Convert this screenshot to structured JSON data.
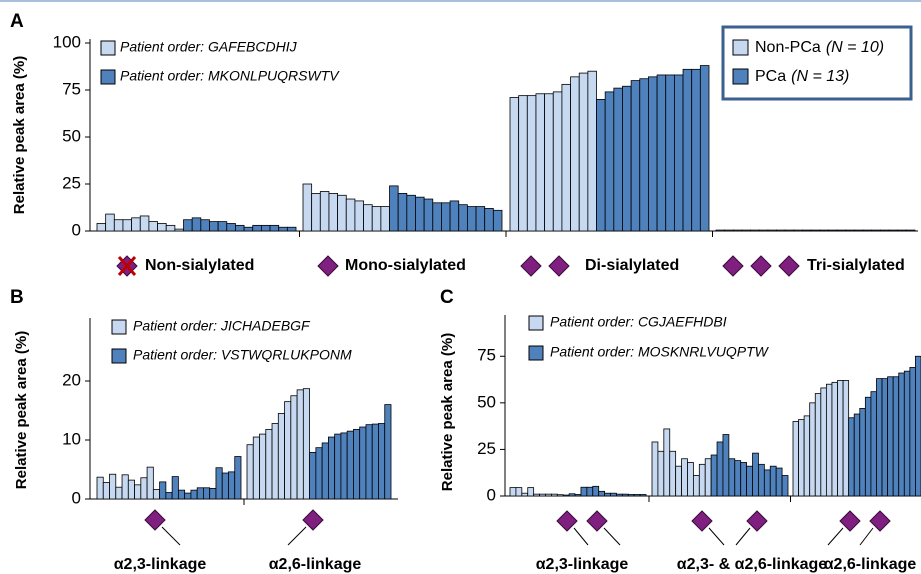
{
  "chart_data": [
    {
      "type": "bar",
      "panel": "A",
      "ylabel": "Relative peak area (%)",
      "categories": [
        "Non-sialylated",
        "Mono-sialylated",
        "Di-sialylated",
        "Tri-sialylated"
      ],
      "ylim": [
        0,
        100
      ],
      "yticks": [
        0,
        25,
        50,
        75,
        100
      ],
      "series": [
        {
          "name": "Non-PCa",
          "n_label": "(N = 10)",
          "order_label": "Patient order: GAFEBCDHIJ",
          "color": "#c6d9f1",
          "values": [
            [
              4,
              9,
              6,
              6,
              7,
              8,
              5,
              4,
              3,
              1
            ],
            [
              25,
              20,
              21,
              20,
              19,
              17,
              16,
              14,
              13,
              13
            ],
            [
              71,
              72,
              72,
              73,
              73,
              74,
              78,
              82,
              84,
              85
            ],
            [
              0.5,
              0.5,
              0.5,
              0.5,
              0.5,
              0.5,
              0.5,
              0.5,
              0.5,
              0.5
            ]
          ]
        },
        {
          "name": "PCa",
          "n_label": "(N = 13)",
          "order_label": "Patient order: MKONLPUQRSWTV",
          "color": "#4f81bd",
          "values": [
            [
              6,
              7,
              6,
              5,
              5,
              4,
              3,
              2,
              3,
              3,
              3,
              2,
              2
            ],
            [
              24,
              20,
              19,
              18,
              17,
              15,
              15,
              16,
              14,
              13,
              13,
              12,
              11
            ],
            [
              70,
              74,
              76,
              77,
              80,
              81,
              82,
              83,
              83,
              83,
              86,
              86,
              88
            ],
            [
              0.5,
              0.5,
              0.5,
              0.5,
              0.5,
              0.5,
              0.5,
              0.5,
              0.5,
              0.5,
              0.5,
              0.5,
              0.5
            ]
          ]
        }
      ]
    },
    {
      "type": "bar",
      "panel": "B",
      "ylabel": "Relative peak area (%)",
      "categories": [
        "α2,3-linkage",
        "α2,6-linkage"
      ],
      "ylim": [
        0,
        30
      ],
      "yticks": [
        0,
        10,
        20
      ],
      "series": [
        {
          "name": "Patient order: JICHADEBGF",
          "color": "#c6d9f1",
          "values": [
            [
              3.7,
              2.8,
              4.2,
              2.0,
              4.1,
              3.2,
              2.4,
              3.6,
              5.4,
              1.6
            ],
            [
              9.2,
              10.5,
              11,
              11.8,
              12.8,
              14.5,
              16.5,
              17.5,
              18.5,
              18.7
            ]
          ]
        },
        {
          "name": "Patient order: VSTWQRLUKPONM",
          "color": "#4f81bd",
          "values": [
            [
              2.9,
              1.1,
              3.8,
              1.5,
              1.0,
              1.5,
              1.9,
              1.9,
              1.8,
              5.3,
              4.4,
              4.6,
              7.2
            ],
            [
              7.9,
              8.7,
              9.5,
              10.5,
              11,
              11.2,
              11.5,
              11.8,
              12.2,
              12.6,
              12.7,
              12.8,
              16
            ]
          ]
        }
      ]
    },
    {
      "type": "bar",
      "panel": "C",
      "ylabel": "Relative peak area (%)",
      "categories": [
        "α2,3-linkage",
        "α2,3- & α2,6-linkage",
        "α2,6-linkage"
      ],
      "ylim": [
        0,
        95
      ],
      "yticks": [
        0,
        25,
        50,
        75
      ],
      "series": [
        {
          "name": "Patient order: CGJAEFHDBI",
          "color": "#c6d9f1",
          "values": [
            [
              4.5,
              4.5,
              1.5,
              4.5,
              1,
              1,
              1,
              1,
              0.7,
              0.5
            ],
            [
              29,
              24,
              36,
              24,
              16,
              20,
              18,
              11,
              17,
              20
            ],
            [
              40,
              41,
              43,
              50,
              55,
              58,
              60,
              61,
              62,
              62
            ]
          ]
        },
        {
          "name": "Patient order: MOSKNRLVUQPTW",
          "color": "#4f81bd",
          "values": [
            [
              1.2,
              0.8,
              4.7,
              4.7,
              5.2,
              2.5,
              1.5,
              1.5,
              1,
              1,
              0.8,
              0.8,
              0.8
            ],
            [
              22,
              29,
              33,
              20,
              19,
              18,
              16,
              23,
              17,
              14,
              16,
              15,
              11
            ],
            [
              42,
              44,
              47,
              53,
              56,
              63,
              63,
              64,
              64,
              66,
              67,
              69,
              75
            ]
          ]
        }
      ]
    }
  ]
}
